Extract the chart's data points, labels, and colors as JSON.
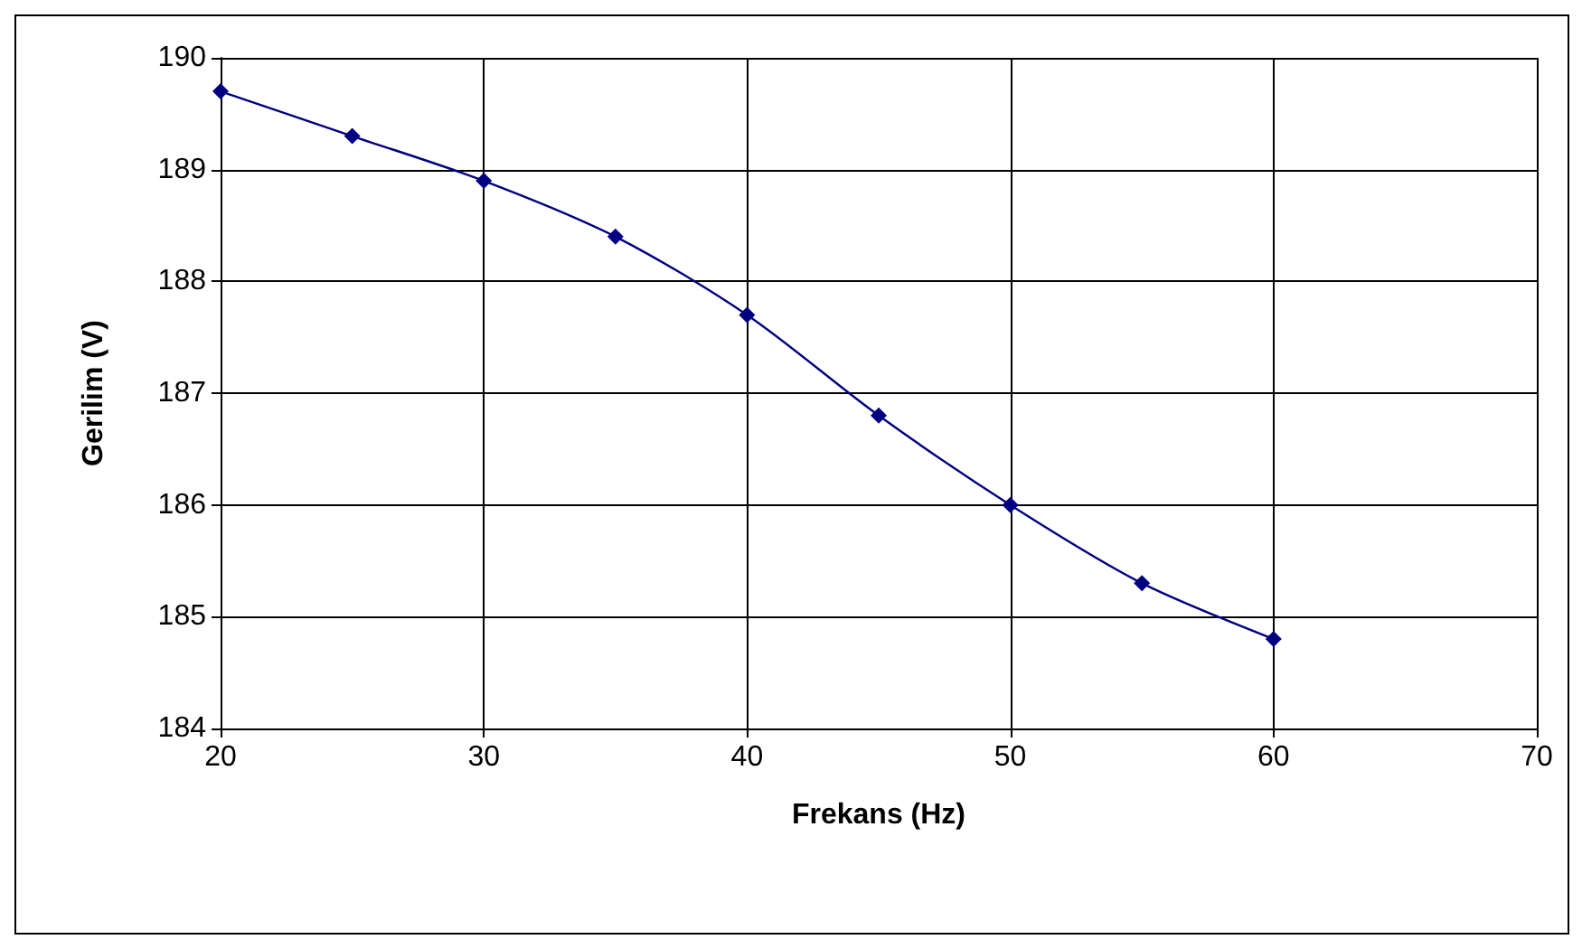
{
  "chart_data": {
    "type": "line",
    "xlabel": "Frekans (Hz)",
    "ylabel": "Gerilim (V)",
    "x": [
      20,
      25,
      30,
      35,
      40,
      45,
      50,
      55,
      60
    ],
    "series": [
      {
        "color": "#000080",
        "values": [
          189.7,
          189.3,
          188.9,
          188.4,
          187.7,
          186.8,
          186.0,
          185.3,
          184.8
        ]
      }
    ],
    "xlim": [
      20,
      70
    ],
    "xticks": [
      20,
      30,
      40,
      50,
      60,
      70
    ],
    "ylim": [
      184,
      190
    ],
    "yticks": [
      184,
      185,
      186,
      187,
      188,
      189,
      190
    ],
    "grid": true,
    "marker": "diamond",
    "line_style": "solid"
  }
}
